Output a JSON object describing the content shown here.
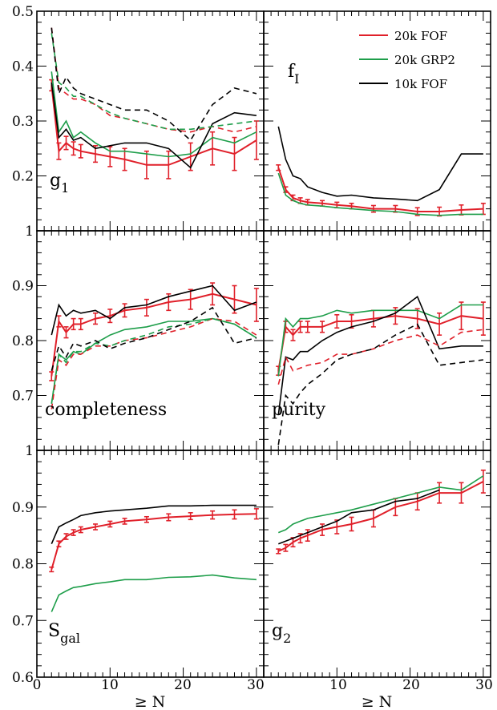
{
  "figure": {
    "colors": {
      "red": "#e0202a",
      "green": "#1e9e4a",
      "black": "#000000"
    }
  },
  "legend": [
    {
      "name": "20k FOF",
      "color": "#e0202a"
    },
    {
      "name": "20k GRP2",
      "color": "#1e9e4a"
    },
    {
      "name": "10k FOF",
      "color": "#000000"
    }
  ],
  "axes": {
    "x_title": "≥ N",
    "x_ticks": [
      "0",
      "10",
      "20",
      "30"
    ],
    "x_ticks_right": [
      "10",
      "20",
      "30"
    ]
  },
  "chart_data": [
    {
      "type": "line",
      "panel": "g1",
      "label_main": "g",
      "label_sub": "1",
      "xlim": [
        0,
        31
      ],
      "ylim": [
        0.1,
        0.5
      ],
      "yticks": [
        0.2,
        0.3,
        0.4,
        0.5
      ],
      "ytick_labels": [
        "0.2",
        "0.3",
        "0.4",
        "0.5"
      ],
      "x": [
        2,
        3,
        4,
        5,
        6,
        8,
        10,
        12,
        15,
        18,
        21,
        24,
        27,
        30
      ],
      "series": [
        {
          "name": "20k FOF",
          "color": "red",
          "style": "solid",
          "errorbars": true,
          "values": [
            0.365,
            0.245,
            0.26,
            0.25,
            0.245,
            0.24,
            0.235,
            0.23,
            0.22,
            0.22,
            0.235,
            0.25,
            0.24,
            0.265
          ],
          "errors": [
            0.01,
            0.015,
            0.012,
            0.012,
            0.012,
            0.015,
            0.018,
            0.02,
            0.025,
            0.025,
            0.025,
            0.03,
            0.03,
            0.035
          ]
        },
        {
          "name": "20k GRP2",
          "color": "green",
          "style": "solid",
          "values": [
            0.39,
            0.28,
            0.3,
            0.27,
            0.28,
            0.26,
            0.245,
            0.245,
            0.24,
            0.235,
            0.24,
            0.27,
            0.26,
            0.28
          ]
        },
        {
          "name": "10k FOF",
          "color": "black",
          "style": "solid",
          "values": [
            0.37,
            0.27,
            0.285,
            0.265,
            0.27,
            0.25,
            0.255,
            0.26,
            0.26,
            0.25,
            0.215,
            0.295,
            0.315,
            0.31
          ]
        },
        {
          "name": "20k FOF",
          "color": "red",
          "style": "dashed",
          "values": [
            0.47,
            0.36,
            0.35,
            0.34,
            0.34,
            0.33,
            0.31,
            0.305,
            0.295,
            0.285,
            0.28,
            0.29,
            0.28,
            0.29
          ]
        },
        {
          "name": "20k GRP2",
          "color": "green",
          "style": "dashed",
          "values": [
            0.46,
            0.37,
            0.36,
            0.345,
            0.345,
            0.33,
            0.315,
            0.305,
            0.295,
            0.285,
            0.285,
            0.29,
            0.295,
            0.3
          ]
        },
        {
          "name": "10k FOF",
          "color": "black",
          "style": "dashed",
          "values": [
            0.47,
            0.35,
            0.38,
            0.36,
            0.35,
            0.34,
            0.33,
            0.32,
            0.32,
            0.3,
            0.265,
            0.33,
            0.36,
            0.35
          ]
        }
      ]
    },
    {
      "type": "line",
      "panel": "fI",
      "label_main": "f",
      "label_sub": "I",
      "xlim": [
        0,
        31
      ],
      "ylim": [
        0.1,
        0.5
      ],
      "yticks": [
        0.2,
        0.3,
        0.4,
        0.5
      ],
      "ytick_labels": [],
      "x": [
        2,
        3,
        4,
        5,
        6,
        8,
        10,
        12,
        15,
        18,
        21,
        24,
        27,
        30
      ],
      "series": [
        {
          "name": "20k FOF",
          "color": "red",
          "style": "solid",
          "errorbars": true,
          "values": [
            0.215,
            0.175,
            0.16,
            0.155,
            0.152,
            0.15,
            0.147,
            0.145,
            0.14,
            0.14,
            0.135,
            0.135,
            0.138,
            0.14
          ],
          "errors": [
            0.005,
            0.005,
            0.005,
            0.005,
            0.005,
            0.005,
            0.005,
            0.005,
            0.006,
            0.006,
            0.007,
            0.008,
            0.009,
            0.01
          ]
        },
        {
          "name": "20k GRP2",
          "color": "green",
          "style": "solid",
          "values": [
            0.205,
            0.165,
            0.155,
            0.15,
            0.147,
            0.145,
            0.142,
            0.14,
            0.137,
            0.135,
            0.13,
            0.128,
            0.13,
            0.13
          ]
        },
        {
          "name": "10k FOF",
          "color": "black",
          "style": "solid",
          "values": [
            0.29,
            0.23,
            0.2,
            0.195,
            0.18,
            0.17,
            0.163,
            0.165,
            0.16,
            0.158,
            0.155,
            0.175,
            0.24,
            0.24
          ]
        }
      ]
    },
    {
      "type": "line",
      "panel": "completeness",
      "label_main": "completeness",
      "label_sub": "",
      "xlim": [
        0,
        31
      ],
      "ylim": [
        0.6,
        1.0
      ],
      "yticks": [
        0.7,
        0.8,
        0.9,
        1.0
      ],
      "ytick_labels": [
        "0.7",
        "0.8",
        "0.9",
        "1"
      ],
      "x": [
        2,
        3,
        4,
        5,
        6,
        8,
        10,
        12,
        15,
        18,
        21,
        24,
        27,
        30
      ],
      "series": [
        {
          "name": "20k FOF",
          "color": "red",
          "style": "solid",
          "errorbars": true,
          "values": [
            0.735,
            0.835,
            0.815,
            0.83,
            0.83,
            0.84,
            0.845,
            0.855,
            0.86,
            0.87,
            0.875,
            0.885,
            0.875,
            0.865
          ],
          "errors": [
            0.008,
            0.01,
            0.01,
            0.01,
            0.01,
            0.01,
            0.012,
            0.012,
            0.015,
            0.015,
            0.018,
            0.02,
            0.025,
            0.03
          ]
        },
        {
          "name": "20k GRP2",
          "color": "green",
          "style": "solid",
          "values": [
            0.685,
            0.775,
            0.765,
            0.78,
            0.775,
            0.795,
            0.81,
            0.82,
            0.825,
            0.835,
            0.835,
            0.84,
            0.83,
            0.805
          ]
        },
        {
          "name": "10k FOF",
          "color": "black",
          "style": "solid",
          "values": [
            0.81,
            0.865,
            0.845,
            0.855,
            0.85,
            0.855,
            0.84,
            0.86,
            0.865,
            0.88,
            0.89,
            0.9,
            0.855,
            0.87
          ]
        },
        {
          "name": "20k FOF",
          "color": "red",
          "style": "dashed",
          "values": [
            0.675,
            0.765,
            0.755,
            0.775,
            0.775,
            0.79,
            0.79,
            0.8,
            0.805,
            0.815,
            0.825,
            0.84,
            0.835,
            0.81
          ]
        },
        {
          "name": "20k GRP2",
          "color": "green",
          "style": "dashed",
          "values": [
            0.685,
            0.775,
            0.76,
            0.78,
            0.78,
            0.795,
            0.79,
            0.8,
            0.81,
            0.825,
            0.83,
            0.84,
            0.83,
            0.805
          ]
        },
        {
          "name": "10k FOF",
          "color": "black",
          "style": "dashed",
          "values": [
            0.745,
            0.79,
            0.77,
            0.795,
            0.79,
            0.8,
            0.785,
            0.795,
            0.805,
            0.82,
            0.835,
            0.86,
            0.795,
            0.805
          ]
        }
      ]
    },
    {
      "type": "line",
      "panel": "purity",
      "label_main": "purity",
      "label_sub": "",
      "xlim": [
        0,
        31
      ],
      "ylim": [
        0.6,
        1.0
      ],
      "yticks": [
        0.7,
        0.8,
        0.9,
        1.0
      ],
      "ytick_labels": [],
      "x": [
        2,
        3,
        4,
        5,
        6,
        8,
        10,
        12,
        15,
        18,
        21,
        24,
        27,
        30
      ],
      "series": [
        {
          "name": "20k FOF",
          "color": "red",
          "style": "solid",
          "errorbars": true,
          "values": [
            0.745,
            0.825,
            0.81,
            0.825,
            0.825,
            0.825,
            0.835,
            0.835,
            0.84,
            0.845,
            0.84,
            0.83,
            0.845,
            0.84
          ],
          "errors": [
            0.008,
            0.01,
            0.01,
            0.01,
            0.01,
            0.01,
            0.012,
            0.012,
            0.015,
            0.015,
            0.018,
            0.02,
            0.025,
            0.03
          ]
        },
        {
          "name": "20k GRP2",
          "color": "green",
          "style": "solid",
          "values": [
            0.735,
            0.84,
            0.825,
            0.84,
            0.84,
            0.845,
            0.855,
            0.85,
            0.855,
            0.855,
            0.855,
            0.84,
            0.865,
            0.865
          ]
        },
        {
          "name": "10k FOF",
          "color": "black",
          "style": "solid",
          "values": [
            0.665,
            0.77,
            0.765,
            0.78,
            0.78,
            0.8,
            0.815,
            0.825,
            0.835,
            0.85,
            0.88,
            0.785,
            0.79,
            0.79
          ]
        },
        {
          "name": "20k FOF",
          "color": "red",
          "style": "dashed",
          "values": [
            0.72,
            0.77,
            0.745,
            0.75,
            0.755,
            0.76,
            0.775,
            0.775,
            0.785,
            0.8,
            0.81,
            0.79,
            0.815,
            0.82
          ]
        },
        {
          "name": "10k FOF",
          "color": "black",
          "style": "dashed",
          "values": [
            0.61,
            0.7,
            0.685,
            0.705,
            0.72,
            0.74,
            0.765,
            0.775,
            0.785,
            0.81,
            0.83,
            0.755,
            0.76,
            0.765
          ]
        }
      ]
    },
    {
      "type": "line",
      "panel": "Sgal",
      "label_main": "S",
      "label_sub": "gal",
      "xlim": [
        0,
        31
      ],
      "ylim": [
        0.6,
        1.0
      ],
      "yticks": [
        0.6,
        0.7,
        0.8,
        0.9,
        1.0
      ],
      "ytick_labels": [
        "0.6",
        "0.7",
        "0.8",
        "0.9",
        "1"
      ],
      "x": [
        2,
        3,
        4,
        5,
        6,
        8,
        10,
        12,
        15,
        18,
        21,
        24,
        27,
        30
      ],
      "series": [
        {
          "name": "20k FOF",
          "color": "red",
          "style": "solid",
          "errorbars": true,
          "values": [
            0.79,
            0.835,
            0.848,
            0.855,
            0.86,
            0.865,
            0.87,
            0.875,
            0.878,
            0.882,
            0.884,
            0.886,
            0.887,
            0.888
          ],
          "errors": [
            0.004,
            0.005,
            0.005,
            0.005,
            0.005,
            0.005,
            0.005,
            0.005,
            0.005,
            0.006,
            0.006,
            0.007,
            0.008,
            0.009
          ]
        },
        {
          "name": "20k GRP2",
          "color": "green",
          "style": "solid",
          "values": [
            0.715,
            0.745,
            0.752,
            0.758,
            0.76,
            0.765,
            0.768,
            0.772,
            0.772,
            0.776,
            0.777,
            0.78,
            0.775,
            0.772
          ]
        },
        {
          "name": "10k FOF",
          "color": "black",
          "style": "solid",
          "values": [
            0.835,
            0.865,
            0.872,
            0.878,
            0.885,
            0.89,
            0.893,
            0.895,
            0.898,
            0.902,
            0.902,
            0.903,
            0.903,
            0.903
          ]
        }
      ]
    },
    {
      "type": "line",
      "panel": "g2",
      "label_main": "g",
      "label_sub": "2",
      "xlim": [
        0,
        31
      ],
      "ylim": [
        0.6,
        1.0
      ],
      "yticks": [
        0.6,
        0.7,
        0.8,
        0.9,
        1.0
      ],
      "ytick_labels": [],
      "x": [
        2,
        3,
        4,
        5,
        6,
        8,
        10,
        12,
        15,
        18,
        21,
        24,
        27,
        30
      ],
      "series": [
        {
          "name": "20k FOF",
          "color": "red",
          "style": "solid",
          "errorbars": true,
          "values": [
            0.822,
            0.828,
            0.838,
            0.845,
            0.85,
            0.86,
            0.865,
            0.87,
            0.88,
            0.9,
            0.91,
            0.925,
            0.925,
            0.945
          ],
          "errors": [
            0.004,
            0.006,
            0.008,
            0.008,
            0.01,
            0.01,
            0.012,
            0.012,
            0.015,
            0.015,
            0.015,
            0.018,
            0.018,
            0.02
          ]
        },
        {
          "name": "20k GRP2",
          "color": "green",
          "style": "solid",
          "values": [
            0.855,
            0.86,
            0.87,
            0.875,
            0.88,
            0.885,
            0.89,
            0.895,
            0.905,
            0.915,
            0.925,
            0.935,
            0.93,
            0.955
          ]
        },
        {
          "name": "10k FOF",
          "color": "black",
          "style": "solid",
          "values": [
            0.835,
            0.84,
            0.845,
            0.85,
            0.855,
            0.865,
            0.875,
            0.89,
            0.895,
            0.91,
            0.915,
            0.93,
            null,
            null
          ]
        }
      ]
    }
  ]
}
